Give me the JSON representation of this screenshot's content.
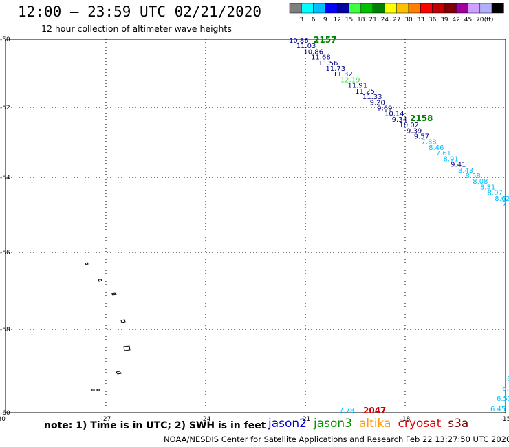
{
  "title": "12:00 – 23:59 UTC 02/21/2020",
  "subtitle": "12 hour collection of altimeter wave heights",
  "colorbar": {
    "unit": "(ft)",
    "colors": [
      "#7f7f7f",
      "#00ffff",
      "#00bfff",
      "#0000ff",
      "#0000a0",
      "#40ff40",
      "#00c000",
      "#008000",
      "#ffff00",
      "#ffc000",
      "#ff8000",
      "#ff0000",
      "#c00000",
      "#800000",
      "#a000a0",
      "#d0a0ff",
      "#b0b0ff",
      "#000000"
    ],
    "labels": [
      "3",
      "6",
      "9",
      "12",
      "15",
      "18",
      "21",
      "24",
      "27",
      "30",
      "33",
      "36",
      "39",
      "42",
      "45",
      "70"
    ]
  },
  "axes": {
    "lat_labels": [
      "-50",
      "-52",
      "-54",
      "-56",
      "-58",
      "-60"
    ],
    "lon_labels": [
      "-30",
      "-27",
      "-24",
      "-21",
      "-18",
      "-15"
    ]
  },
  "track_top": {
    "time_labels": [
      {
        "text": "2157",
        "color": "#008000"
      },
      {
        "text": "2158",
        "color": "#008000"
      }
    ],
    "points": [
      {
        "v": "10.86",
        "c": "#00008b"
      },
      {
        "v": "11.03",
        "c": "#00008b"
      },
      {
        "v": "10.86",
        "c": "#00008b"
      },
      {
        "v": "11.68",
        "c": "#00008b"
      },
      {
        "v": "11.56",
        "c": "#00008b"
      },
      {
        "v": "11.73",
        "c": "#00008b"
      },
      {
        "v": "11.32",
        "c": "#00008b"
      },
      {
        "v": "12.19",
        "c": "#40dd40"
      },
      {
        "v": "11.91",
        "c": "#00008b"
      },
      {
        "v": "11.25",
        "c": "#00008b"
      },
      {
        "v": "11.33",
        "c": "#00008b"
      },
      {
        "v": "9.20",
        "c": "#00008b"
      },
      {
        "v": "9.69",
        "c": "#00008b"
      },
      {
        "v": "10.14",
        "c": "#00008b"
      },
      {
        "v": "9.34",
        "c": "#00008b"
      },
      {
        "v": "10.02",
        "c": "#00008b"
      },
      {
        "v": "9.39",
        "c": "#00008b"
      },
      {
        "v": "9.57",
        "c": "#00008b"
      },
      {
        "v": "7.88",
        "c": "#00bfff"
      },
      {
        "v": "8.46",
        "c": "#00bfff"
      },
      {
        "v": "7.61",
        "c": "#00bfff"
      },
      {
        "v": "8.91",
        "c": "#00bfff"
      },
      {
        "v": "9.41",
        "c": "#00008b"
      },
      {
        "v": "8.43",
        "c": "#00bfff"
      },
      {
        "v": "8.58",
        "c": "#00bfff"
      },
      {
        "v": "8.08",
        "c": "#00bfff"
      },
      {
        "v": "8.31",
        "c": "#00bfff"
      },
      {
        "v": "8.07",
        "c": "#00bfff"
      },
      {
        "v": "8.62",
        "c": "#00bfff"
      },
      {
        "v": "7.",
        "c": "#00bfff"
      }
    ]
  },
  "track_bottom": {
    "time_label": {
      "text": "2047",
      "color": "#d00000"
    },
    "points": [
      {
        "v": "7.78",
        "c": "#00bfff"
      },
      {
        "v": "6",
        "c": "#00bfff"
      },
      {
        "v": "6.",
        "c": "#00bfff"
      },
      {
        "v": "6.53",
        "c": "#00bfff"
      },
      {
        "v": "6.45",
        "c": "#00bfff"
      }
    ]
  },
  "note": "note: 1) Time is in UTC; 2) SWH is in feet",
  "satellites": [
    {
      "name": "jason2",
      "color": "#0000d0"
    },
    {
      "name": "jason3",
      "color": "#009000"
    },
    {
      "name": "altika",
      "color": "#ff9900"
    },
    {
      "name": "cryosat",
      "color": "#e00000"
    },
    {
      "name": "s3a",
      "color": "#800000"
    }
  ],
  "credit": "NOAA/NESDIS Center for Satellite Applications and Research    Feb 22 13:27:50 UTC 2020"
}
